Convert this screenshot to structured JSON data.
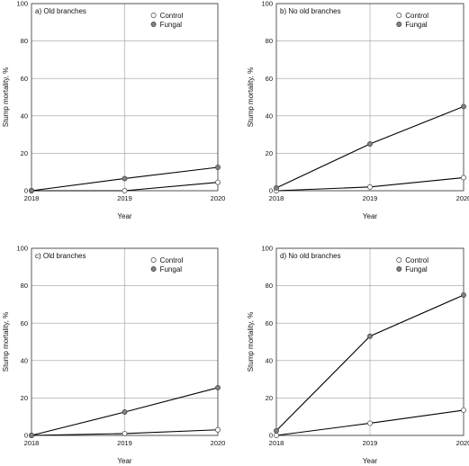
{
  "colors": {
    "frame": "#333333",
    "grid": "#9e9e9e",
    "line": "#000000",
    "control_fill": "#ffffff",
    "fungal_fill": "#808080",
    "marker_stroke": "#444444"
  },
  "chart_data": [
    {
      "type": "line",
      "title": "a) Old branches",
      "xlabel": "Year",
      "ylabel": "Stump mortality, %",
      "x": [
        "2018",
        "2019",
        "2020"
      ],
      "ylim": [
        0,
        100
      ],
      "yticks": [
        "0",
        "20",
        "40",
        "60",
        "80",
        "100"
      ],
      "grid": true,
      "legend_placement": "top-right",
      "series": [
        {
          "name": "Control",
          "values": [
            0,
            0,
            4.5
          ]
        },
        {
          "name": "Fungal",
          "values": [
            0,
            6.5,
            12.5
          ]
        }
      ]
    },
    {
      "type": "line",
      "title": "b) No old branches",
      "xlabel": "Year",
      "ylabel": "Stump mortality, %",
      "x": [
        "2018",
        "2019",
        "2020"
      ],
      "ylim": [
        0,
        100
      ],
      "yticks": [
        "0",
        "20",
        "40",
        "60",
        "80",
        "100"
      ],
      "grid": true,
      "legend_placement": "top-right",
      "series": [
        {
          "name": "Control",
          "values": [
            0,
            2,
            7
          ]
        },
        {
          "name": "Fungal",
          "values": [
            1.5,
            25,
            45
          ]
        }
      ]
    },
    {
      "type": "line",
      "title": "c) Old branches",
      "xlabel": "Year",
      "ylabel": "Stump mortality, %",
      "x": [
        "2018",
        "2019",
        "2020"
      ],
      "ylim": [
        0,
        100
      ],
      "yticks": [
        "0",
        "20",
        "40",
        "60",
        "80",
        "100"
      ],
      "grid": true,
      "legend_placement": "top-right",
      "series": [
        {
          "name": "Control",
          "values": [
            0,
            1,
            3
          ]
        },
        {
          "name": "Fungal",
          "values": [
            0,
            12.5,
            25.5
          ]
        }
      ]
    },
    {
      "type": "line",
      "title": "d) No old branches",
      "xlabel": "Year",
      "ylabel": "Stump mortality, %",
      "x": [
        "2018",
        "2019",
        "2020"
      ],
      "ylim": [
        0,
        100
      ],
      "yticks": [
        "0",
        "20",
        "40",
        "60",
        "80",
        "100"
      ],
      "grid": true,
      "legend_placement": "top-right",
      "series": [
        {
          "name": "Control",
          "values": [
            0,
            6.5,
            13.5
          ]
        },
        {
          "name": "Fungal",
          "values": [
            2.5,
            53,
            75
          ]
        }
      ]
    }
  ]
}
